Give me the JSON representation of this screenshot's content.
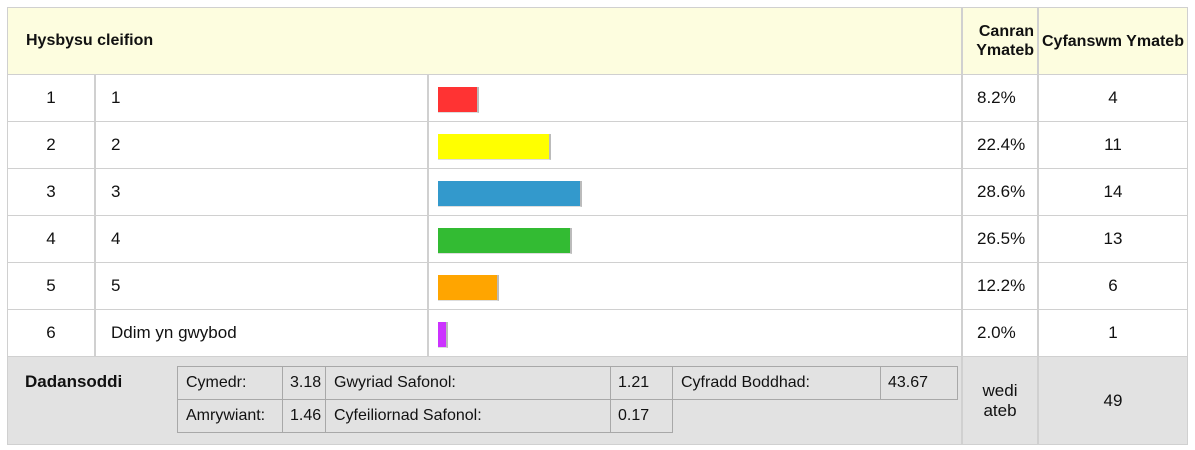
{
  "header": {
    "title": "Hysbysu cleifion",
    "percent_heading": "Canran Ymateb",
    "count_heading": "Cyfanswm Ymateb"
  },
  "rows": [
    {
      "index": 1,
      "label": "1",
      "percent": 8.2,
      "percent_label": "8.2%",
      "count": 4,
      "color": "#ff3333"
    },
    {
      "index": 2,
      "label": "2",
      "percent": 22.4,
      "percent_label": "22.4%",
      "count": 11,
      "color": "#ffff00"
    },
    {
      "index": 3,
      "label": "3",
      "percent": 28.6,
      "percent_label": "28.6%",
      "count": 14,
      "color": "#3399cc"
    },
    {
      "index": 4,
      "label": "4",
      "percent": 26.5,
      "percent_label": "26.5%",
      "count": 13,
      "color": "#33bb33"
    },
    {
      "index": 5,
      "label": "5",
      "percent": 12.2,
      "percent_label": "12.2%",
      "count": 6,
      "color": "#ffa500"
    },
    {
      "index": 6,
      "label": "Ddim yn gwybod",
      "percent": 2.0,
      "percent_label": "2.0%",
      "count": 1,
      "color": "#cc33ff"
    }
  ],
  "summary": {
    "title": "Dadansoddi",
    "stats": [
      {
        "label": "Cymedr:",
        "value": 3.18
      },
      {
        "label": "Gwyriad Safonol:",
        "value": 1.21
      },
      {
        "label": "Cyfradd Boddhad:",
        "value": 43.67
      },
      {
        "label": "Amrywiant:",
        "value": 1.46
      },
      {
        "label": "Cyfeiliornad Safonol:",
        "value": 0.17
      }
    ],
    "answered_label": "wedi ateb",
    "answered": 49
  }
}
